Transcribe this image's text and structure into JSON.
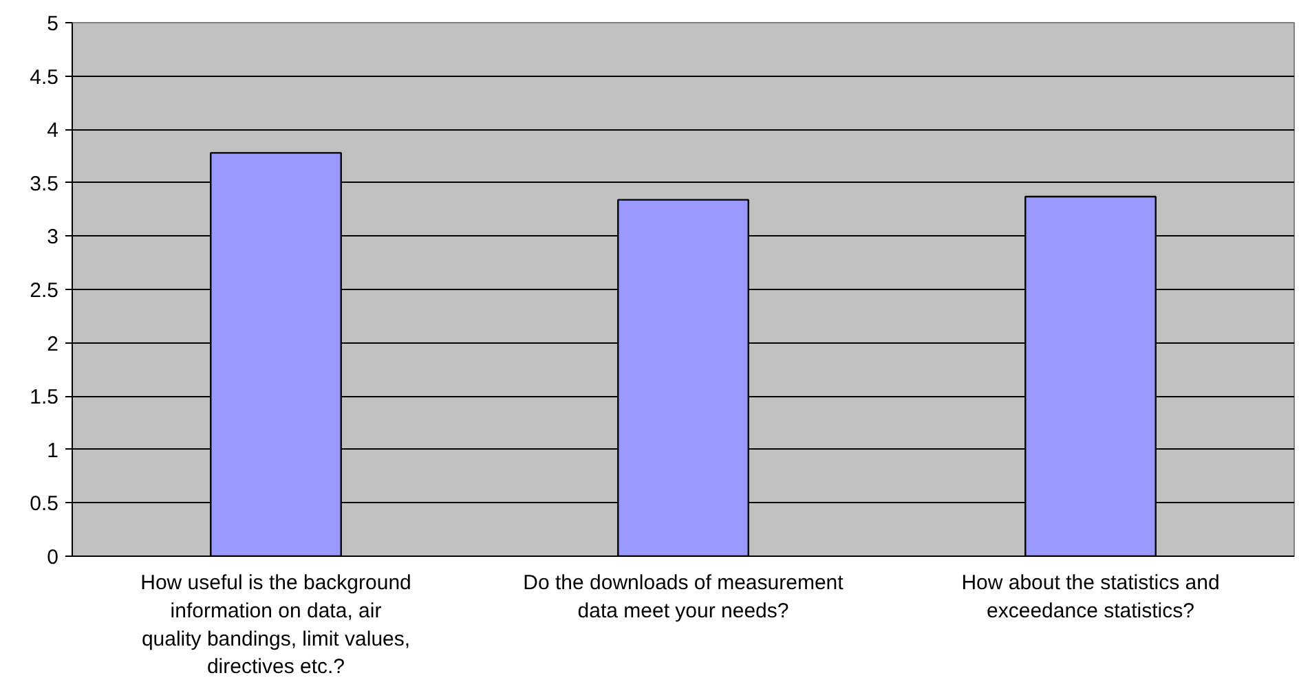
{
  "chart_data": {
    "type": "bar",
    "categories": [
      "How useful is the background information on data, air quality bandings, limit values, directives etc.?",
      "Do the downloads of measurement data meet your needs?",
      "How about the statistics and exceedance statistics?"
    ],
    "values": [
      3.78,
      3.34,
      3.37
    ],
    "color": "#9999ff",
    "ylim": [
      0,
      5
    ],
    "yticks": [
      0,
      0.5,
      1,
      1.5,
      2,
      2.5,
      3,
      3.5,
      4,
      4.5,
      5
    ],
    "grid": "y"
  }
}
